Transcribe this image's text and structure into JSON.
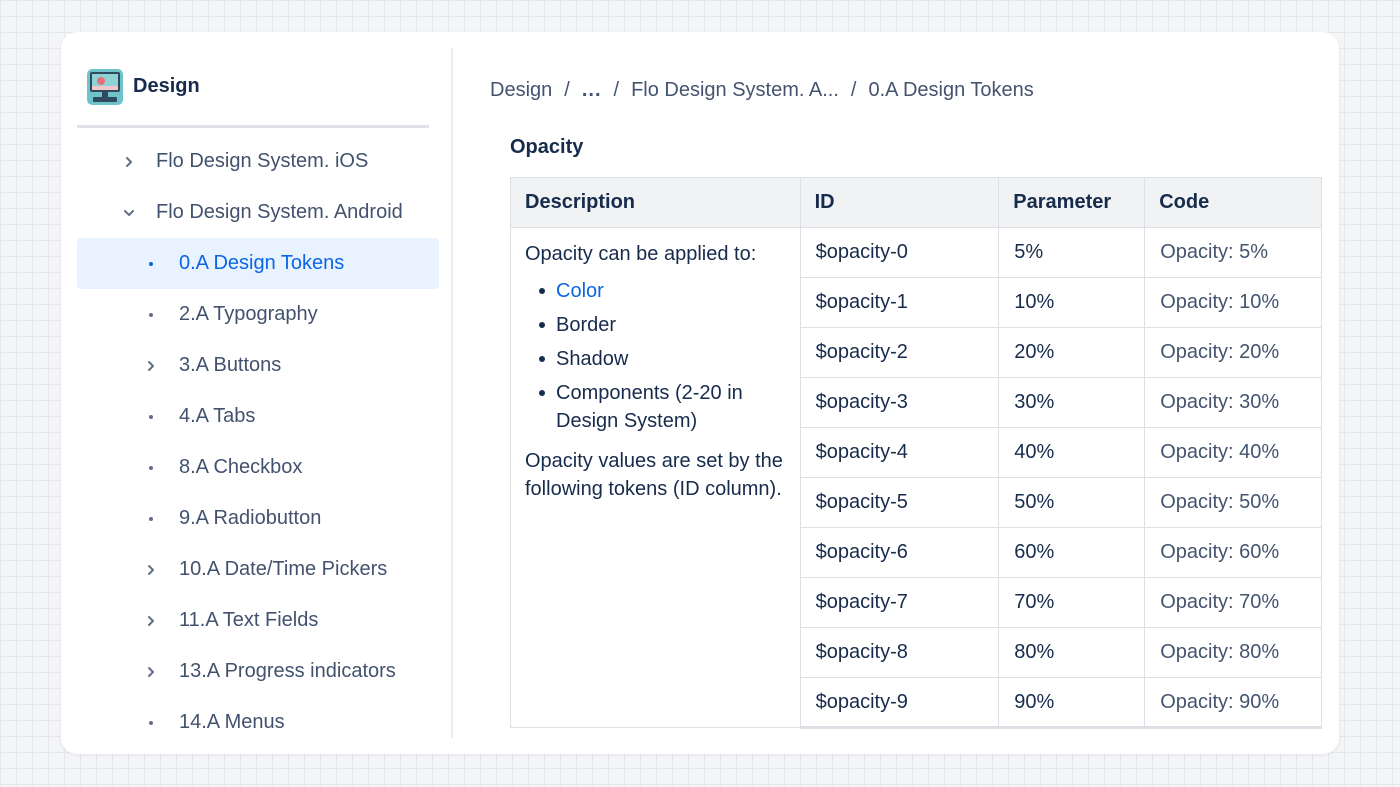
{
  "space": {
    "title": "Design",
    "logo_icon": "monitor-icon"
  },
  "tree": [
    {
      "label": "Flo Design System. iOS",
      "level": 1,
      "icon": "chevron-right-icon"
    },
    {
      "label": "Flo Design System. Android",
      "level": 1,
      "icon": "chevron-down-icon"
    },
    {
      "label": "0.A Design Tokens",
      "level": 2,
      "icon": "bullet-icon",
      "active": true
    },
    {
      "label": "2.A Typography",
      "level": 2,
      "icon": "bullet-icon"
    },
    {
      "label": "3.A Buttons",
      "level": 2,
      "icon": "chevron-right-icon"
    },
    {
      "label": "4.A Tabs",
      "level": 2,
      "icon": "bullet-icon"
    },
    {
      "label": "8.A Checkbox",
      "level": 2,
      "icon": "bullet-icon"
    },
    {
      "label": "9.A Radiobutton",
      "level": 2,
      "icon": "bullet-icon"
    },
    {
      "label": "10.A Date/Time Pickers",
      "level": 2,
      "icon": "chevron-right-icon"
    },
    {
      "label": "11.A Text Fields",
      "level": 2,
      "icon": "chevron-right-icon"
    },
    {
      "label": "13.A Progress indicators",
      "level": 2,
      "icon": "chevron-right-icon"
    },
    {
      "label": "14.A Menus",
      "level": 2,
      "icon": "bullet-icon"
    }
  ],
  "breadcrumb": {
    "items": [
      "Design",
      "...",
      "Flo Design System. A...",
      "0.A Design Tokens"
    ],
    "separator": "/"
  },
  "section": {
    "title": "Opacity"
  },
  "table": {
    "headers": [
      "Description",
      "ID",
      "Parameter",
      "Code"
    ],
    "description": {
      "intro": "Opacity can be applied to:",
      "bullets": [
        "Color",
        "Border",
        "Shadow",
        "Components (2-20 in Design System)"
      ],
      "outro": "Opacity values are set by the following tokens (ID column)."
    },
    "rows": [
      {
        "id": "$opacity-0",
        "param": "5%",
        "code": "Opacity: 5%"
      },
      {
        "id": "$opacity-1",
        "param": "10%",
        "code": "Opacity: 10%"
      },
      {
        "id": "$opacity-2",
        "param": "20%",
        "code": "Opacity: 20%"
      },
      {
        "id": "$opacity-3",
        "param": "30%",
        "code": "Opacity: 30%"
      },
      {
        "id": "$opacity-4",
        "param": "40%",
        "code": "Opacity: 40%"
      },
      {
        "id": "$opacity-5",
        "param": "50%",
        "code": "Opacity: 50%"
      },
      {
        "id": "$opacity-6",
        "param": "60%",
        "code": "Opacity: 60%"
      },
      {
        "id": "$opacity-7",
        "param": "70%",
        "code": "Opacity: 70%"
      },
      {
        "id": "$opacity-8",
        "param": "80%",
        "code": "Opacity: 80%"
      },
      {
        "id": "$opacity-9",
        "param": "90%",
        "code": "Opacity: 90%"
      }
    ]
  },
  "colors": {
    "accent": "#0c66e4",
    "active_bg": "#e9f2ff",
    "text": "#172b4d",
    "muted": "#44546f"
  }
}
